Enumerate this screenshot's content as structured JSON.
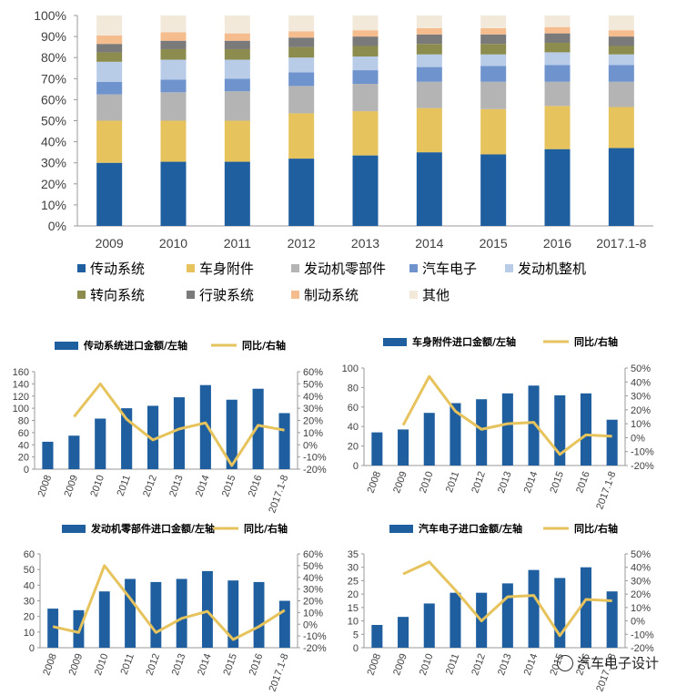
{
  "watermark": "汽车电子设计",
  "chart_data": [
    {
      "type": "bar",
      "stacked": true,
      "categories": [
        "2009",
        "2010",
        "2011",
        "2012",
        "2013",
        "2014",
        "2015",
        "2016",
        "2017.1-8"
      ],
      "ylim": [
        0,
        100
      ],
      "yunit": "%",
      "yticks": [
        0,
        10,
        20,
        30,
        40,
        50,
        60,
        70,
        80,
        90,
        100
      ],
      "grid": false,
      "legend_position": "bottom",
      "series": [
        {
          "name": "传动系统",
          "color": "#1F5FA0",
          "values": [
            30,
            30.5,
            30.5,
            32,
            33.5,
            35,
            34,
            36.5,
            37
          ]
        },
        {
          "name": "车身附件",
          "color": "#E6C35C",
          "values": [
            20,
            19.5,
            19.5,
            21.5,
            21,
            21,
            21.5,
            20.5,
            19.5
          ]
        },
        {
          "name": "发动机零部件",
          "color": "#B4B4B4",
          "values": [
            12.5,
            13.5,
            14,
            13,
            13,
            12.5,
            13,
            11.5,
            12
          ]
        },
        {
          "name": "汽车电子",
          "color": "#6F93CC",
          "values": [
            6,
            6,
            6,
            6.5,
            6.5,
            7,
            7.5,
            8,
            8
          ]
        },
        {
          "name": "发动机整机",
          "color": "#B8CCE8",
          "values": [
            9.5,
            9.5,
            9,
            7,
            6.5,
            6,
            5.5,
            6,
            5
          ]
        },
        {
          "name": "转向系统",
          "color": "#8C8C4E",
          "values": [
            4.5,
            5,
            5,
            5,
            5,
            5,
            5,
            4.5,
            4
          ]
        },
        {
          "name": "行驶系统",
          "color": "#7A7A7A",
          "values": [
            4,
            4,
            4,
            4.5,
            4.5,
            4.5,
            4.5,
            4.5,
            4.5
          ]
        },
        {
          "name": "制动系统",
          "color": "#F5BC8E",
          "values": [
            4,
            4,
            3.5,
            3,
            3,
            3,
            3,
            3,
            3
          ]
        },
        {
          "name": "其他",
          "color": "#F2E9DA",
          "values": [
            9.5,
            8,
            8.5,
            7.5,
            7,
            6,
            6,
            5.5,
            7
          ]
        }
      ]
    },
    {
      "type": "bar+line",
      "categories": [
        "2008",
        "2009",
        "2010",
        "2011",
        "2012",
        "2013",
        "2014",
        "2015",
        "2016",
        "2017.1-8"
      ],
      "bar_series": {
        "name": "传动系统进口金额/左轴",
        "color": "#1F5FA0",
        "values": [
          45,
          55,
          83,
          100,
          104,
          118,
          138,
          114,
          132,
          92
        ]
      },
      "line_series": {
        "name": "同比/右轴",
        "color": "#E6C35C",
        "values": [
          null,
          23,
          50,
          21,
          4,
          13,
          18,
          -17,
          16,
          12
        ]
      },
      "y_left": {
        "min": 0,
        "max": 160,
        "ticks": [
          0,
          20,
          40,
          60,
          80,
          100,
          120,
          140,
          160
        ]
      },
      "y_right": {
        "min": -20,
        "max": 60,
        "unit": "%",
        "ticks": [
          -20,
          -10,
          0,
          10,
          20,
          30,
          40,
          50,
          60
        ]
      }
    },
    {
      "type": "bar+line",
      "categories": [
        "2008",
        "2009",
        "2010",
        "2011",
        "2012",
        "2013",
        "2014",
        "2015",
        "2016",
        "2017.1-8"
      ],
      "bar_series": {
        "name": "车身附件进口金额/左轴",
        "color": "#1F5FA0",
        "values": [
          34,
          37,
          54,
          64,
          68,
          74,
          82,
          72,
          74,
          47
        ]
      },
      "line_series": {
        "name": "同比/右轴",
        "color": "#E6C35C",
        "values": [
          null,
          9,
          44,
          19,
          6,
          10,
          11,
          -12,
          2,
          1
        ]
      },
      "y_left": {
        "min": 0,
        "max": 100,
        "ticks": [
          0,
          20,
          40,
          60,
          80,
          100
        ]
      },
      "y_right": {
        "min": -20,
        "max": 50,
        "unit": "%",
        "ticks": [
          -20,
          -10,
          0,
          10,
          20,
          30,
          40,
          50
        ]
      }
    },
    {
      "type": "bar+line",
      "categories": [
        "2008",
        "2009",
        "2010",
        "2011",
        "2012",
        "2013",
        "2014",
        "2015",
        "2016",
        "2017.1-8"
      ],
      "bar_series": {
        "name": "发动机零部件进口金额/左轴",
        "color": "#1F5FA0",
        "values": [
          25,
          24,
          36,
          44,
          42,
          44,
          49,
          43,
          42,
          30
        ]
      },
      "line_series": {
        "name": "同比/右轴",
        "color": "#E6C35C",
        "values": [
          -2,
          -7,
          50,
          22,
          -7,
          5,
          11,
          -13,
          -2,
          12
        ]
      },
      "y_left": {
        "min": 0,
        "max": 60,
        "ticks": [
          0,
          10,
          20,
          30,
          40,
          50,
          60
        ]
      },
      "y_right": {
        "min": -20,
        "max": 60,
        "unit": "%",
        "ticks": [
          -20,
          -10,
          0,
          10,
          20,
          30,
          40,
          50,
          60
        ]
      }
    },
    {
      "type": "bar+line",
      "categories": [
        "2008",
        "2009",
        "2010",
        "2011",
        "2012",
        "2013",
        "2014",
        "2015",
        "2016",
        "2017.1-8"
      ],
      "bar_series": {
        "name": "汽车电子进口金额/左轴",
        "color": "#1F5FA0",
        "values": [
          8.5,
          11.5,
          16.5,
          20.5,
          20.5,
          24,
          29,
          26,
          30,
          21
        ]
      },
      "line_series": {
        "name": "同比/右轴",
        "color": "#E6C35C",
        "values": [
          null,
          35,
          44,
          23,
          0,
          18,
          19,
          -11,
          16,
          15
        ]
      },
      "y_left": {
        "min": 0,
        "max": 35,
        "ticks": [
          0,
          5,
          10,
          15,
          20,
          25,
          30,
          35
        ]
      },
      "y_right": {
        "min": -20,
        "max": 50,
        "unit": "%",
        "ticks": [
          -20,
          -10,
          0,
          10,
          20,
          30,
          40,
          50
        ]
      }
    }
  ]
}
